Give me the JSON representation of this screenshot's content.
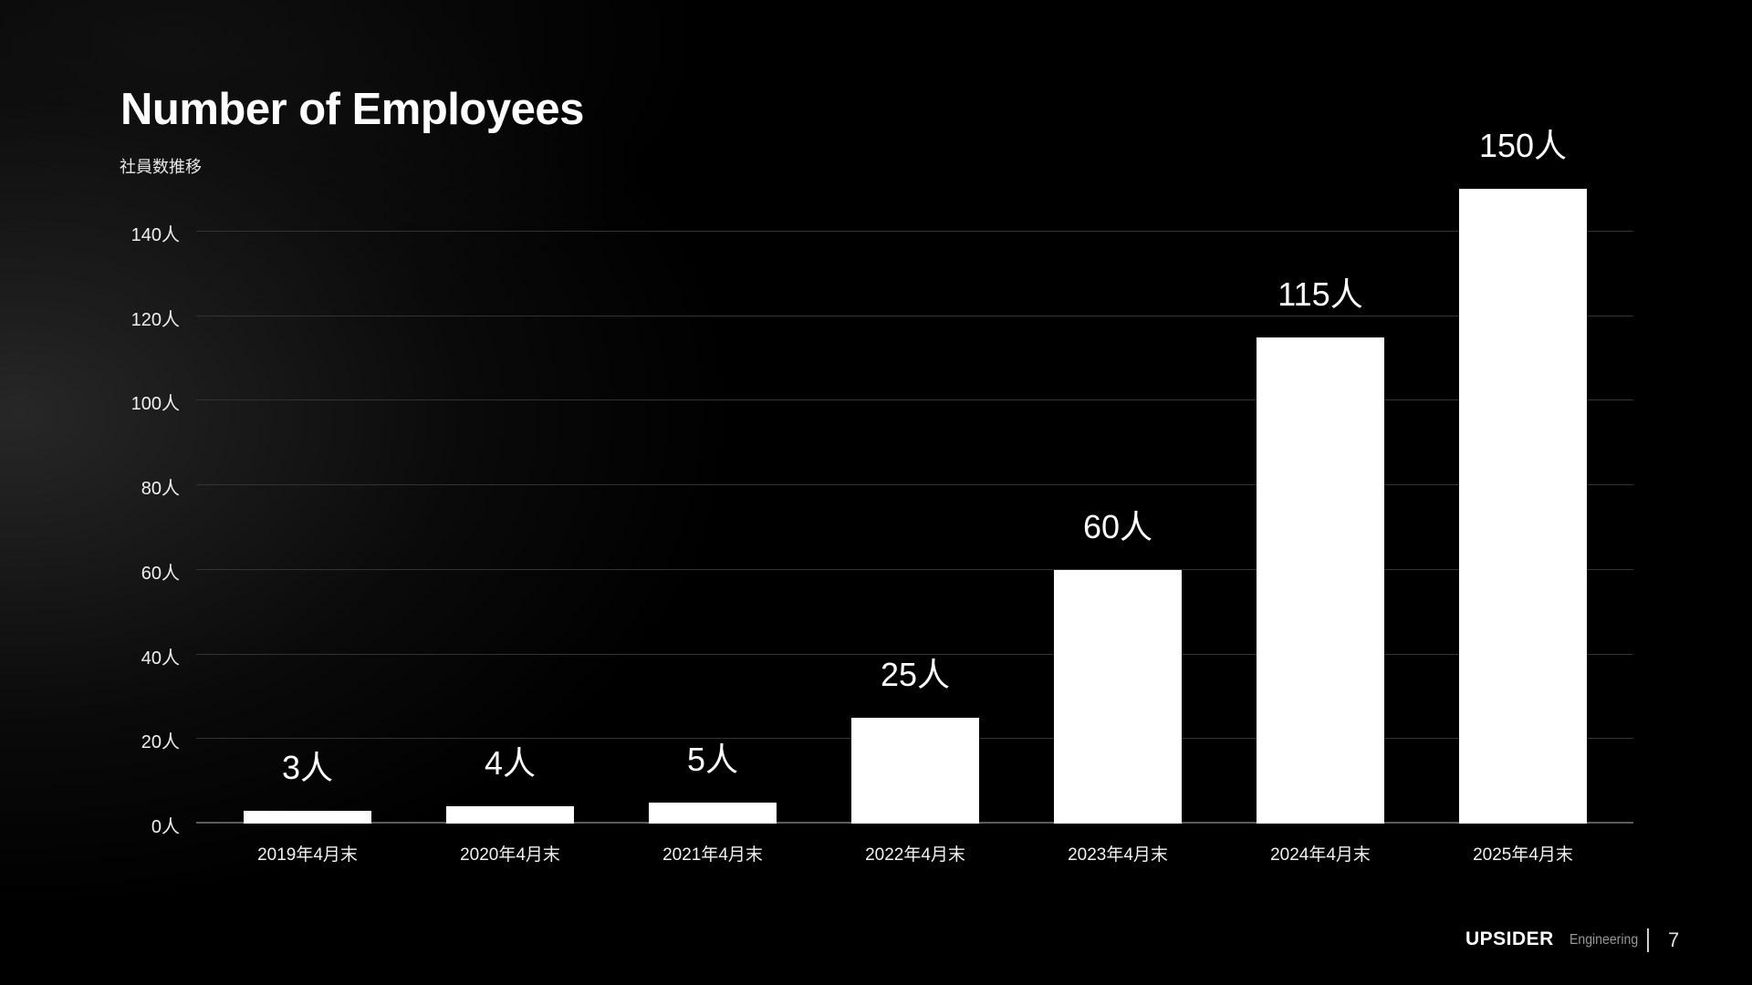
{
  "chart_data": {
    "type": "bar",
    "title": "Number of Employees",
    "subtitle": "社員数推移",
    "categories": [
      "2019年4月末",
      "2020年4月末",
      "2021年4月末",
      "2022年4月末",
      "2023年4月末",
      "2024年4月末",
      "2025年4月末"
    ],
    "values": [
      3,
      4,
      5,
      25,
      60,
      115,
      150
    ],
    "value_labels": [
      "3人",
      "4人",
      "5人",
      "25人",
      "60人",
      "115人",
      "150人"
    ],
    "unit": "人",
    "xlabel": "",
    "ylabel": "",
    "y_ticks": [
      0,
      20,
      40,
      60,
      80,
      100,
      120,
      140
    ],
    "y_tick_labels": [
      "0人",
      "20人",
      "40人",
      "60人",
      "80人",
      "100人",
      "120人",
      "140人"
    ],
    "ylim": [
      0,
      151
    ],
    "grid": "horizontal",
    "legend": "none",
    "bar_color": "#ffffff",
    "gridline_color": "#333333",
    "baseline_color": "#5c5c5c",
    "background_color": "#000000",
    "text_color": "#ffffff"
  },
  "footer": {
    "logo": "UPSIDER",
    "department": "Engineering",
    "page_number": "7"
  }
}
